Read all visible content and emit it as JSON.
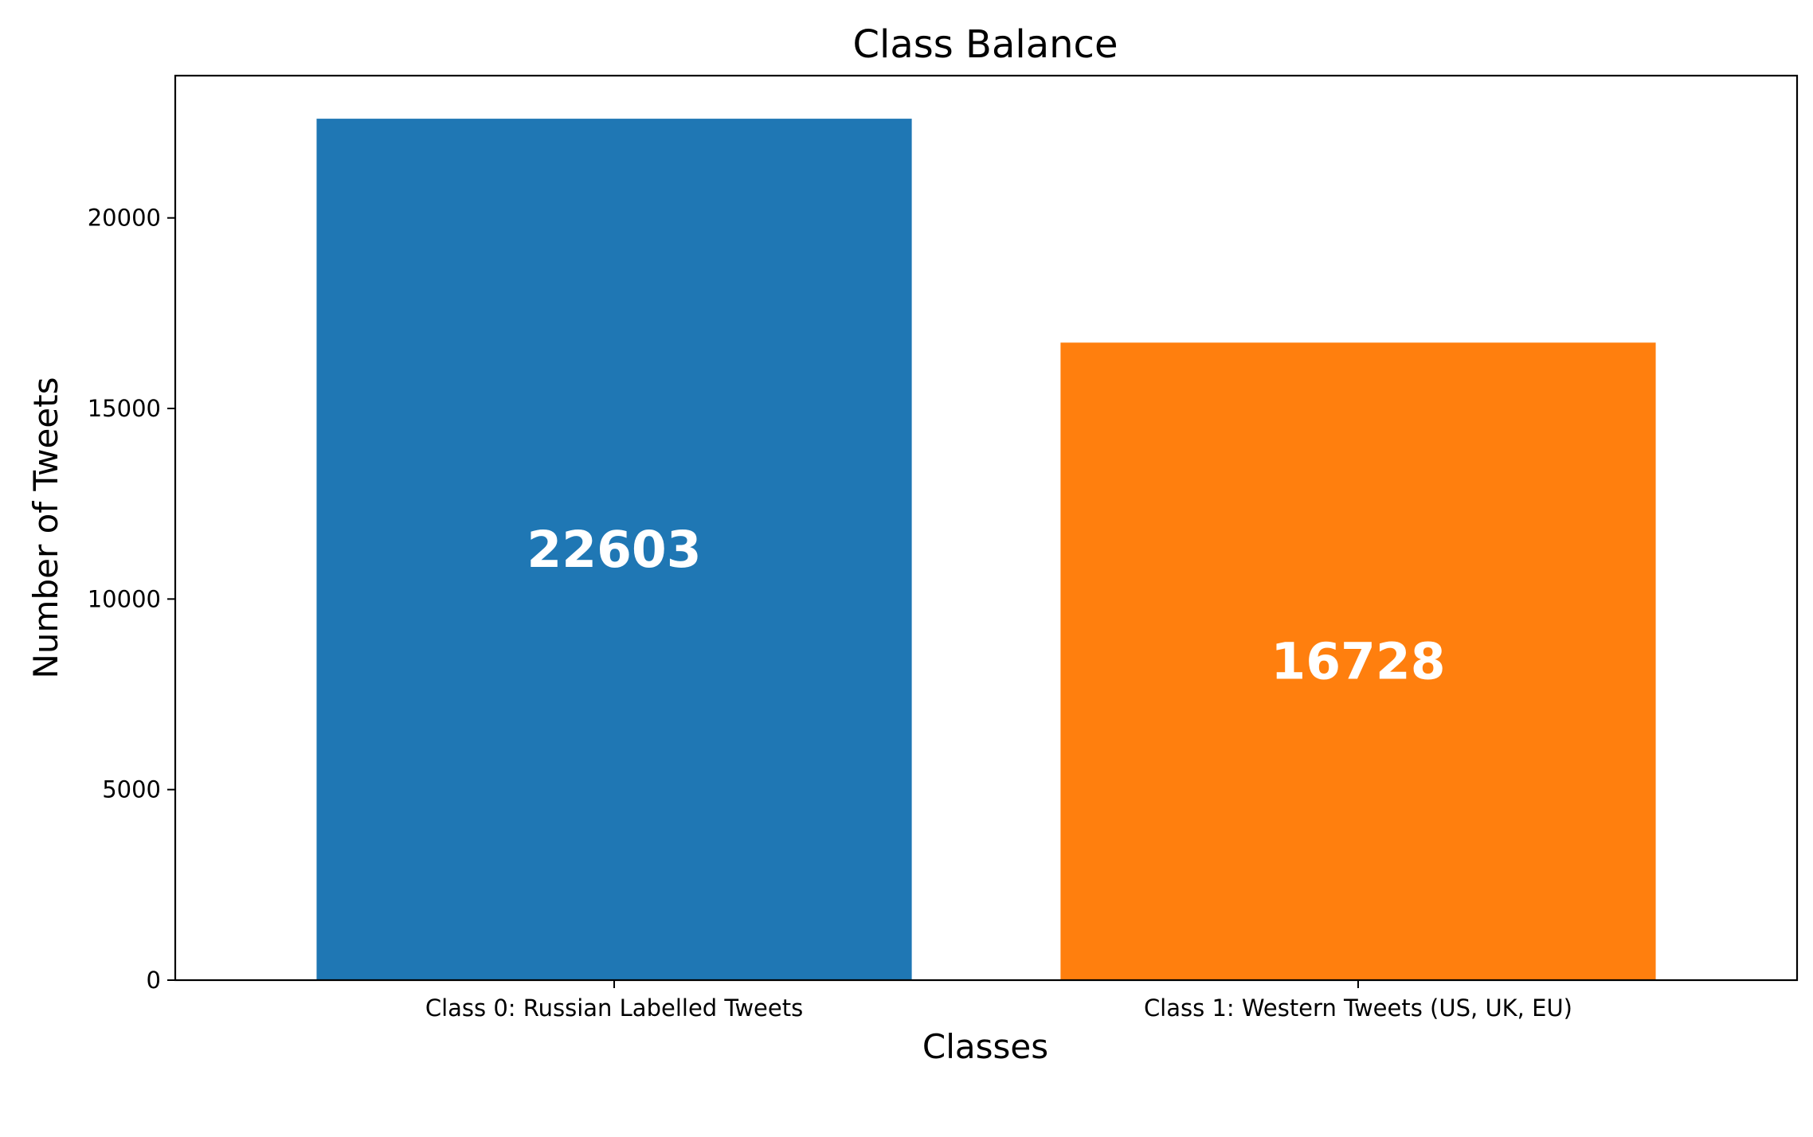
{
  "chart_data": {
    "type": "bar",
    "title": "Class Balance",
    "xlabel": "Classes",
    "ylabel": "Number of Tweets",
    "categories": [
      "Class 0: Russian Labelled Tweets",
      "Class 1: Western Tweets (US, UK, EU)"
    ],
    "values": [
      22603,
      16728
    ],
    "data_labels": [
      "22603",
      "16728"
    ],
    "colors": [
      "#1f77b4",
      "#ff7f0e"
    ],
    "label_color": "#ffffff",
    "yticks": [
      0,
      5000,
      10000,
      15000,
      20000
    ],
    "ytick_labels": [
      "0",
      "5000",
      "10000",
      "15000",
      "20000"
    ],
    "ylim": [
      0,
      23733
    ],
    "grid": false,
    "legend": "none"
  }
}
